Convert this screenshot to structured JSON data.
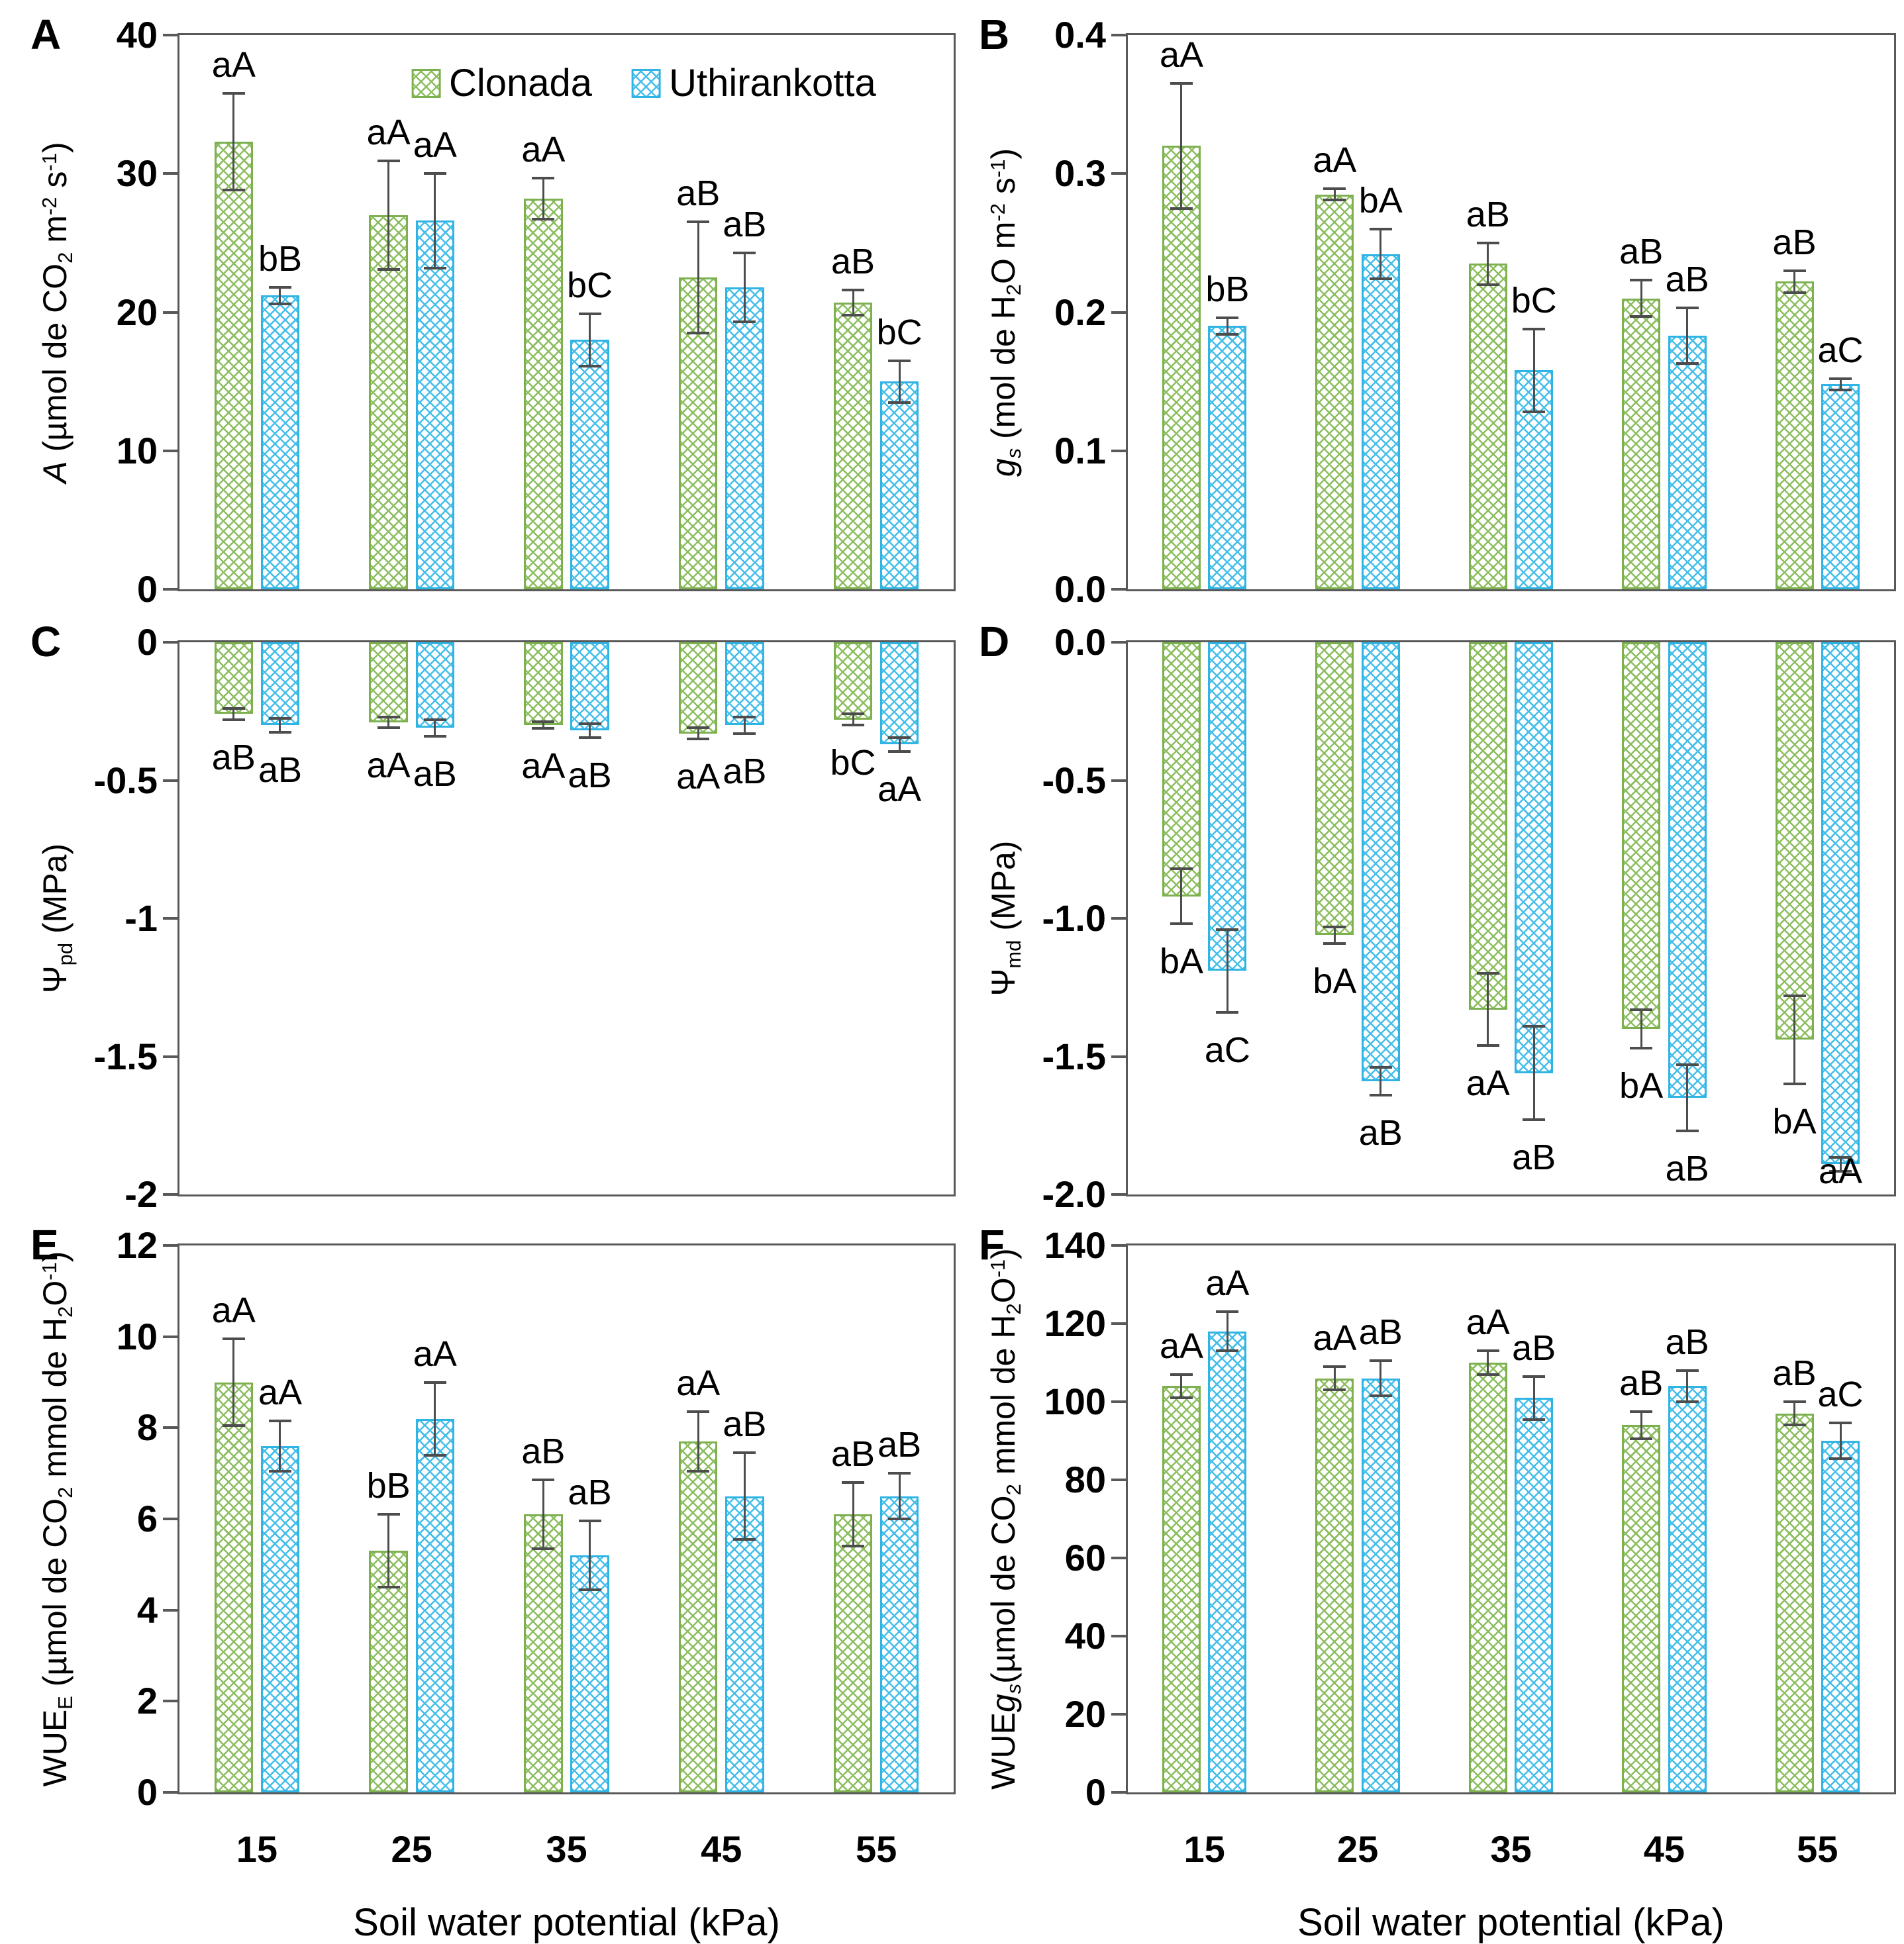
{
  "figure": {
    "x_axis_title": "Soil water potential (kPa)",
    "categories": [
      "15",
      "25",
      "35",
      "45",
      "55"
    ],
    "axis_color": "#595959",
    "error_bar_color": "#4d4d4d",
    "text_color": "#000000",
    "legend": {
      "position": "top-center-of-panel-A",
      "items": [
        {
          "label": "Clonada",
          "pattern": "chevron-hatch",
          "line_color": "#8CBE5F",
          "border_color": "#7DB150"
        },
        {
          "label": "Uthirankotta",
          "pattern": "chevron-hatch",
          "line_color": "#45BEE9",
          "border_color": "#2FB4E4"
        }
      ]
    }
  },
  "chart_data": [
    {
      "panel_letter": "A",
      "type": "bar",
      "direction": "up",
      "ylabel_text": "A (umol de CO2 m-2 s-1)",
      "ylabel_segments": [
        {
          "t": "A",
          "i": true
        },
        {
          "t": " (µmol de CO"
        },
        {
          "t": "2",
          "sub": true
        },
        {
          "t": " m"
        },
        {
          "t": "-2",
          "sup": true
        },
        {
          "t": " s"
        },
        {
          "t": "-1",
          "sup": true
        },
        {
          "t": ")"
        }
      ],
      "ytop": 40,
      "ybottom": 0,
      "yticks": [
        {
          "v": 40,
          "l": "40"
        },
        {
          "v": 30,
          "l": "30"
        },
        {
          "v": 20,
          "l": "20"
        },
        {
          "v": 10,
          "l": "10"
        },
        {
          "v": 0,
          "l": "0"
        }
      ],
      "show_x_tick_labels": false,
      "show_legend": true,
      "series": [
        {
          "name": "Clonada",
          "values": [
            32.3,
            27.0,
            28.2,
            22.5,
            20.7
          ],
          "errors": [
            3.5,
            3.9,
            1.5,
            4.0,
            0.9
          ],
          "labels": [
            "aA",
            "aA",
            "aA",
            "aB",
            "aB"
          ]
        },
        {
          "name": "Uthirankotta",
          "values": [
            21.2,
            26.6,
            18.0,
            21.8,
            15.0
          ],
          "errors": [
            0.6,
            3.4,
            1.9,
            2.5,
            1.5
          ],
          "labels": [
            "bB",
            "aA",
            "bC",
            "aB",
            "bC"
          ]
        }
      ]
    },
    {
      "panel_letter": "B",
      "type": "bar",
      "direction": "up",
      "ylabel_text": "gs (mol de H2O m-2 s-1)",
      "ylabel_segments": [
        {
          "t": "g",
          "i": true
        },
        {
          "t": "s",
          "sub": true,
          "i": true
        },
        {
          "t": " (mol de H"
        },
        {
          "t": "2",
          "sub": true
        },
        {
          "t": "O m"
        },
        {
          "t": "-2",
          "sup": true
        },
        {
          "t": " s"
        },
        {
          "t": "-1",
          "sup": true
        },
        {
          "t": ")"
        }
      ],
      "ytop": 0.4,
      "ybottom": 0,
      "yticks": [
        {
          "v": 0.4,
          "l": "0.4"
        },
        {
          "v": 0.3,
          "l": "0.3"
        },
        {
          "v": 0.2,
          "l": "0.2"
        },
        {
          "v": 0.1,
          "l": "0.1"
        },
        {
          "v": 0,
          "l": "0.0"
        }
      ],
      "show_x_tick_labels": false,
      "show_legend": false,
      "series": [
        {
          "name": "Clonada",
          "values": [
            0.32,
            0.285,
            0.235,
            0.21,
            0.222
          ],
          "errors": [
            0.045,
            0.004,
            0.015,
            0.013,
            0.008
          ],
          "labels": [
            "aA",
            "aA",
            "aB",
            "aB",
            "aB"
          ]
        },
        {
          "name": "Uthirankotta",
          "values": [
            0.19,
            0.242,
            0.158,
            0.183,
            0.148
          ],
          "errors": [
            0.006,
            0.018,
            0.03,
            0.02,
            0.004
          ],
          "labels": [
            "bB",
            "bA",
            "bC",
            "aB",
            "aC"
          ]
        }
      ]
    },
    {
      "panel_letter": "C",
      "type": "bar",
      "direction": "down",
      "ylabel_text": "Psi pd (MPa)",
      "ylabel_segments": [
        {
          "t": "Ψ"
        },
        {
          "t": "pd",
          "sub": true
        },
        {
          "t": " (MPa)"
        }
      ],
      "ytop": 0,
      "ybottom": -2,
      "yticks": [
        {
          "v": 0,
          "l": "0"
        },
        {
          "v": -0.5,
          "l": "-0.5"
        },
        {
          "v": -1,
          "l": "-1"
        },
        {
          "v": -1.5,
          "l": "-1.5"
        },
        {
          "v": -2,
          "l": "-2"
        }
      ],
      "show_x_tick_labels": false,
      "show_legend": false,
      "series": [
        {
          "name": "Clonada",
          "values": [
            -0.26,
            -0.29,
            -0.3,
            -0.33,
            -0.28
          ],
          "errors": [
            0.02,
            0.02,
            0.012,
            0.02,
            0.02
          ],
          "labels": [
            "aB",
            "aA",
            "aA",
            "aA",
            "bC"
          ]
        },
        {
          "name": "Uthirankotta",
          "values": [
            -0.3,
            -0.31,
            -0.32,
            -0.3,
            -0.37
          ],
          "errors": [
            0.025,
            0.03,
            0.025,
            0.03,
            0.025
          ],
          "labels": [
            "aB",
            "aB",
            "aB",
            "aB",
            "aA"
          ]
        }
      ]
    },
    {
      "panel_letter": "D",
      "type": "bar",
      "direction": "down",
      "ylabel_text": "Psi md (MPa)",
      "ylabel_segments": [
        {
          "t": "Ψ"
        },
        {
          "t": "md",
          "sub": true
        },
        {
          "t": " (MPa)"
        }
      ],
      "ytop": 0,
      "ybottom": -2,
      "yticks": [
        {
          "v": 0,
          "l": "0.0"
        },
        {
          "v": -0.5,
          "l": "-0.5"
        },
        {
          "v": -1,
          "l": "-1.0"
        },
        {
          "v": -1.5,
          "l": "-1.5"
        },
        {
          "v": -2,
          "l": "-2.0"
        }
      ],
      "show_x_tick_labels": false,
      "show_legend": false,
      "series": [
        {
          "name": "Clonada",
          "values": [
            -0.92,
            -1.06,
            -1.33,
            -1.4,
            -1.44
          ],
          "errors": [
            0.1,
            0.03,
            0.13,
            0.07,
            0.16
          ],
          "labels": [
            "bA",
            "bA",
            "aA",
            "bA",
            "bA"
          ]
        },
        {
          "name": "Uthirankotta",
          "values": [
            -1.19,
            -1.59,
            -1.56,
            -1.65,
            -1.89
          ],
          "errors": [
            0.15,
            0.05,
            0.17,
            0.12,
            0.025
          ],
          "labels": [
            "aC",
            "aB",
            "aB",
            "aB",
            "aA"
          ]
        }
      ]
    },
    {
      "panel_letter": "E",
      "type": "bar",
      "direction": "up",
      "ylabel_text": "WUEE (umol de CO2 mmol de H2O-1)",
      "ylabel_segments": [
        {
          "t": "WUE"
        },
        {
          "t": "E",
          "sub": true
        },
        {
          "t": " (µmol de CO"
        },
        {
          "t": "2",
          "sub": true
        },
        {
          "t": " mmol de H"
        },
        {
          "t": "2",
          "sub": true
        },
        {
          "t": "O"
        },
        {
          "t": "-1",
          "sup": true
        },
        {
          "t": ")"
        }
      ],
      "ytop": 12,
      "ybottom": 0,
      "yticks": [
        {
          "v": 12,
          "l": "12"
        },
        {
          "v": 10,
          "l": "10"
        },
        {
          "v": 8,
          "l": "8"
        },
        {
          "v": 6,
          "l": "6"
        },
        {
          "v": 4,
          "l": "4"
        },
        {
          "v": 2,
          "l": "2"
        },
        {
          "v": 0,
          "l": "0"
        }
      ],
      "show_x_tick_labels": true,
      "show_legend": false,
      "series": [
        {
          "name": "Clonada",
          "values": [
            9.0,
            5.3,
            6.1,
            7.7,
            6.1
          ],
          "errors": [
            0.95,
            0.8,
            0.75,
            0.65,
            0.7
          ],
          "labels": [
            "aA",
            "bB",
            "aB",
            "aA",
            "aB"
          ]
        },
        {
          "name": "Uthirankotta",
          "values": [
            7.6,
            8.2,
            5.2,
            6.5,
            6.5
          ],
          "errors": [
            0.55,
            0.8,
            0.75,
            0.95,
            0.5
          ],
          "labels": [
            "aA",
            "aA",
            "aB",
            "aB",
            "aB"
          ]
        }
      ]
    },
    {
      "panel_letter": "F",
      "type": "bar",
      "direction": "up",
      "ylabel_text": "WUEgs(umol de CO2 mmol de H2O-1)",
      "ylabel_segments": [
        {
          "t": "WUE"
        },
        {
          "t": "g",
          "i": true
        },
        {
          "t": "s",
          "sub": true,
          "i": true
        },
        {
          "t": "(µmol de CO"
        },
        {
          "t": "2",
          "sub": true
        },
        {
          "t": " mmol de H"
        },
        {
          "t": "2",
          "sub": true
        },
        {
          "t": "O"
        },
        {
          "t": "-1",
          "sup": true
        },
        {
          "t": ")"
        }
      ],
      "ytop": 140,
      "ybottom": 0,
      "yticks": [
        {
          "v": 140,
          "l": "140"
        },
        {
          "v": 120,
          "l": "120"
        },
        {
          "v": 100,
          "l": "100"
        },
        {
          "v": 80,
          "l": "80"
        },
        {
          "v": 60,
          "l": "60"
        },
        {
          "v": 40,
          "l": "40"
        },
        {
          "v": 20,
          "l": "20"
        },
        {
          "v": 0,
          "l": "0"
        }
      ],
      "show_x_tick_labels": true,
      "show_legend": false,
      "series": [
        {
          "name": "Clonada",
          "values": [
            104,
            106,
            110,
            94,
            97
          ],
          "errors": [
            3,
            3,
            3,
            3.5,
            3
          ],
          "labels": [
            "aA",
            "aA",
            "aA",
            "aB",
            "aB"
          ]
        },
        {
          "name": "Uthirankotta",
          "values": [
            118,
            106,
            101,
            104,
            90
          ],
          "errors": [
            5,
            4.5,
            5.5,
            4,
            4.5
          ],
          "labels": [
            "aA",
            "aB",
            "aB",
            "aB",
            "aC"
          ]
        }
      ]
    }
  ]
}
